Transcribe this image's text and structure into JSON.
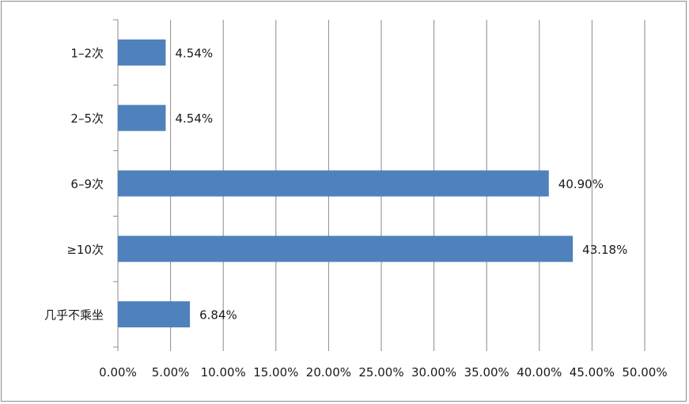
{
  "chart_data": {
    "type": "bar",
    "orientation": "horizontal",
    "categories": [
      "1–2次",
      "2–5次",
      "6–9次",
      "≥10次",
      "几乎不乘坐"
    ],
    "values": [
      4.54,
      4.54,
      40.9,
      43.18,
      6.84
    ],
    "data_labels": [
      "4.54%",
      "4.54%",
      "40.90%",
      "43.18%",
      "6.84%"
    ],
    "xlim": [
      0,
      50
    ],
    "x_ticks": [
      "0.00%",
      "5.00%",
      "10.00%",
      "15.00%",
      "20.00%",
      "25.00%",
      "30.00%",
      "35.00%",
      "40.00%",
      "45.00%",
      "50.00%"
    ],
    "grid": "vertical",
    "legend": "none",
    "title": "",
    "xlabel": "",
    "ylabel": "",
    "bar_color": "#4f81bd"
  }
}
